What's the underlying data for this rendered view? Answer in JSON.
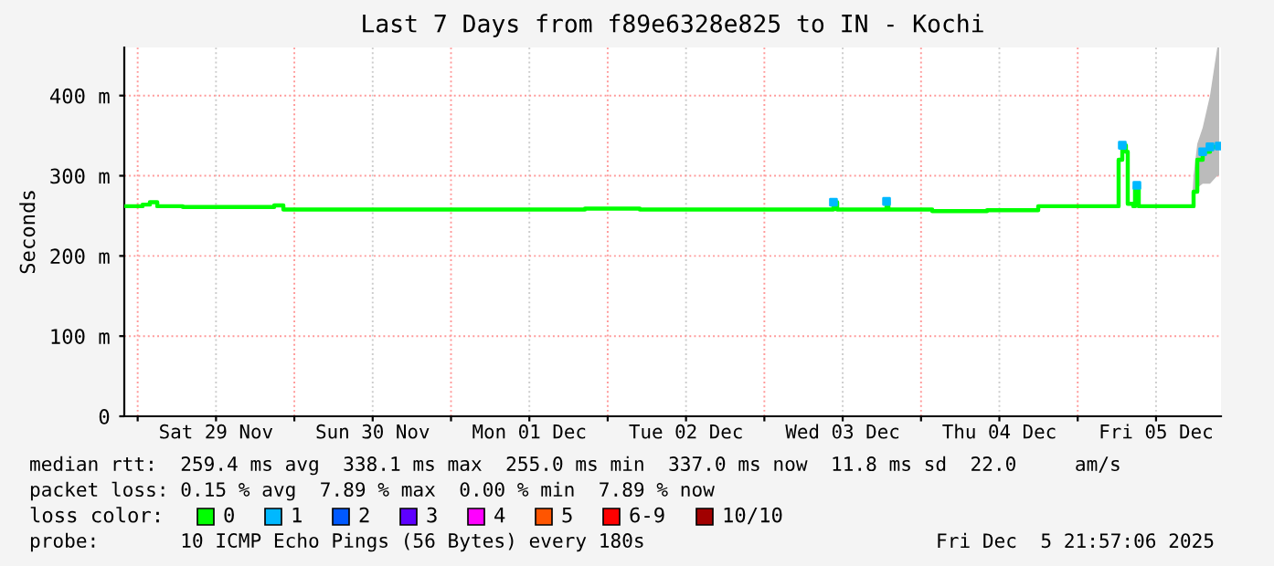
{
  "chart_data": {
    "type": "line",
    "title": "Last 7 Days from f89e6328e825 to IN - Kochi",
    "ylabel": "Seconds",
    "x": [
      "2025-11-28T21:57",
      "2025-11-29T00:45",
      "2025-11-29T01:52",
      "2025-11-29T03:00",
      "2025-11-29T06:55",
      "2025-11-29T20:55",
      "2025-11-29T22:19",
      "2025-12-01T14:55",
      "2025-12-01T20:31",
      "2025-12-02T04:55",
      "2025-12-03T10:19",
      "2025-12-03T10:35",
      "2025-12-03T11:09",
      "2025-12-03T18:43",
      "2025-12-03T19:00",
      "2025-12-03T19:33",
      "2025-12-04T01:43",
      "2025-12-04T10:07",
      "2025-12-04T17:57",
      "2025-12-05T02:55",
      "2025-12-05T05:59",
      "2025-12-05T06:16",
      "2025-12-05T06:50",
      "2025-12-05T07:23",
      "2025-12-05T07:40",
      "2025-12-05T08:31",
      "2025-12-05T08:47",
      "2025-12-05T09:04",
      "2025-12-05T09:21",
      "2025-12-05T17:28",
      "2025-12-05T17:45",
      "2025-12-05T18:19",
      "2025-12-05T19:09",
      "2025-12-05T20:16",
      "2025-12-05T21:23",
      "2025-12-05T21:40"
    ],
    "series": [
      {
        "name": "0",
        "color": "#00ff00",
        "values": [
          262,
          264,
          267,
          262,
          261,
          263,
          258,
          258,
          259,
          258,
          258,
          267,
          258,
          268,
          258,
          258,
          256,
          257,
          262,
          262,
          262,
          320,
          338,
          330,
          265,
          262,
          287,
          288,
          262,
          262,
          280,
          320,
          330,
          336,
          338,
          337
        ],
        "lower": [
          null,
          null,
          null,
          null,
          null,
          null,
          null,
          null,
          null,
          null,
          null,
          null,
          null,
          null,
          null,
          null,
          null,
          null,
          null,
          null,
          null,
          null,
          null,
          null,
          null,
          null,
          null,
          null,
          null,
          262,
          270,
          285,
          290,
          290,
          300,
          300
        ],
        "upper": [
          null,
          null,
          null,
          null,
          null,
          null,
          null,
          null,
          null,
          null,
          null,
          null,
          null,
          null,
          null,
          null,
          null,
          null,
          null,
          null,
          null,
          null,
          null,
          null,
          null,
          null,
          null,
          null,
          null,
          262,
          300,
          340,
          360,
          400,
          460,
          460
        ]
      },
      {
        "name": "1",
        "color": "#00b8ff",
        "type": "scatter",
        "marker": "square",
        "values": [
          null,
          null,
          null,
          null,
          null,
          null,
          null,
          null,
          null,
          null,
          null,
          267,
          null,
          268,
          null,
          null,
          null,
          null,
          null,
          null,
          null,
          null,
          338,
          null,
          null,
          null,
          null,
          288,
          null,
          null,
          null,
          null,
          330,
          336,
          null,
          337
        ]
      },
      {
        "name": "2",
        "color": "#0059ff",
        "values": [
          null,
          null,
          null,
          null,
          null,
          null,
          null,
          null,
          null,
          null,
          null,
          null,
          null,
          null,
          null,
          null,
          null,
          null,
          null,
          null,
          null,
          null,
          null,
          null,
          null,
          null,
          null,
          null,
          null,
          null,
          null,
          null,
          null,
          null,
          null,
          null
        ]
      },
      {
        "name": "3",
        "color": "#5e00ff",
        "values": [
          null,
          null,
          null,
          null,
          null,
          null,
          null,
          null,
          null,
          null,
          null,
          null,
          null,
          null,
          null,
          null,
          null,
          null,
          null,
          null,
          null,
          null,
          null,
          null,
          null,
          null,
          null,
          null,
          null,
          null,
          null,
          null,
          null,
          null,
          null,
          null
        ]
      },
      {
        "name": "4",
        "color": "#ff00ff",
        "values": [
          null,
          null,
          null,
          null,
          null,
          null,
          null,
          null,
          null,
          null,
          null,
          null,
          null,
          null,
          null,
          null,
          null,
          null,
          null,
          null,
          null,
          null,
          null,
          null,
          null,
          null,
          null,
          null,
          null,
          null,
          null,
          null,
          null,
          null,
          null,
          null
        ]
      },
      {
        "name": "5",
        "color": "#ff5500",
        "values": [
          null,
          null,
          null,
          null,
          null,
          null,
          null,
          null,
          null,
          null,
          null,
          null,
          null,
          null,
          null,
          null,
          null,
          null,
          null,
          null,
          null,
          null,
          null,
          null,
          null,
          null,
          null,
          null,
          null,
          null,
          null,
          null,
          null,
          null,
          null,
          null
        ]
      },
      {
        "name": "6-9",
        "color": "#ff0000",
        "values": [
          null,
          null,
          null,
          null,
          null,
          null,
          null,
          null,
          null,
          null,
          null,
          null,
          null,
          null,
          null,
          null,
          null,
          null,
          null,
          null,
          null,
          null,
          null,
          null,
          null,
          null,
          null,
          null,
          null,
          null,
          null,
          null,
          null,
          null,
          null,
          null
        ]
      },
      {
        "name": "10/10",
        "color": "#a10000",
        "values": [
          null,
          null,
          null,
          null,
          null,
          null,
          null,
          null,
          null,
          null,
          null,
          null,
          null,
          null,
          null,
          null,
          null,
          null,
          null,
          null,
          null,
          null,
          null,
          null,
          null,
          null,
          null,
          null,
          null,
          null,
          null,
          null,
          null,
          null,
          null,
          null
        ]
      }
    ],
    "xlim": [
      "2025-11-28T21:57",
      "2025-12-05T21:57"
    ],
    "xticks": [
      {
        "value": "2025-11-29T00:00",
        "label": null
      },
      {
        "value": "2025-11-29T12:00",
        "label": "Sat 29 Nov"
      },
      {
        "value": "2025-11-30T00:00",
        "label": null
      },
      {
        "value": "2025-11-30T12:00",
        "label": "Sun 30 Nov"
      },
      {
        "value": "2025-12-01T00:00",
        "label": null
      },
      {
        "value": "2025-12-01T12:00",
        "label": "Mon 01 Dec"
      },
      {
        "value": "2025-12-02T00:00",
        "label": null
      },
      {
        "value": "2025-12-02T12:00",
        "label": "Tue 02 Dec"
      },
      {
        "value": "2025-12-03T00:00",
        "label": null
      },
      {
        "value": "2025-12-03T12:00",
        "label": "Wed 03 Dec"
      },
      {
        "value": "2025-12-04T00:00",
        "label": null
      },
      {
        "value": "2025-12-04T12:00",
        "label": "Thu 04 Dec"
      },
      {
        "value": "2025-12-05T00:00",
        "label": null
      },
      {
        "value": "2025-12-05T12:00",
        "label": "Fri 05 Dec"
      }
    ],
    "ylim": [
      0,
      460
    ],
    "yticks": [
      0,
      {
        "value": 100,
        "label": "100 m"
      },
      {
        "value": 200,
        "label": "200 m"
      },
      {
        "value": 300,
        "label": "300 m"
      },
      {
        "value": 400,
        "label": "400 m"
      }
    ],
    "grid": true,
    "legend": "bottom",
    "legend_title": "loss color:",
    "line_style": "solid",
    "annotations": [
      "median rtt:  259.4 ms avg  338.1 ms max  255.0 ms min  337.0 ms now  11.8 ms sd  22.0     am/s",
      "packet loss: 0.15 % avg  7.89 % max  0.00 % min  7.89 % now",
      "probe:       10 ICMP Echo Pings (56 Bytes) every 180s",
      "Fri Dec  5 21:57:06 2025"
    ]
  }
}
